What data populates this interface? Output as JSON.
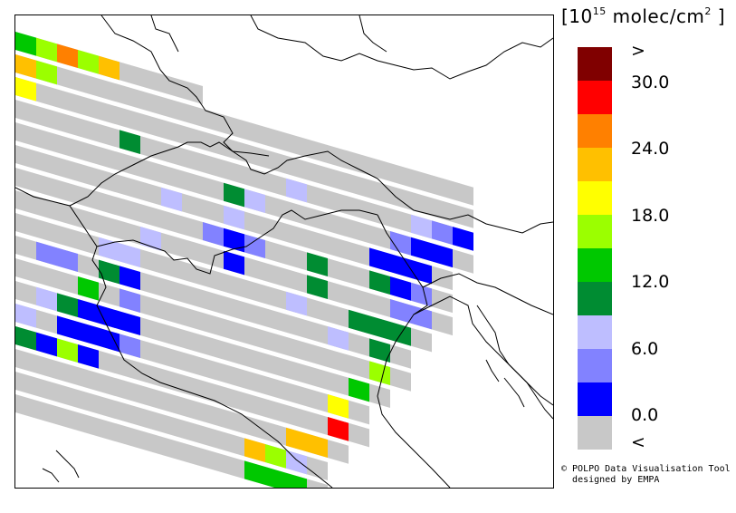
{
  "legend": {
    "title": "[10",
    "title_exp": "15",
    "title_unit": " molec/cm",
    "title_unit_exp": "2",
    "title_close": " ]",
    "swatches": [
      "#800000",
      "#ff0000",
      "#ff8000",
      "#ffc000",
      "#ffff00",
      "#9bff00",
      "#00c800",
      "#008c32",
      "#bebeff",
      "#8282ff",
      "#0000ff",
      "#c8c8c8"
    ],
    "labels": [
      ">",
      "30.0",
      "24.0",
      "18.0",
      "12.0",
      "6.0",
      "0.0",
      "<"
    ]
  },
  "credit": {
    "line1": "© POLPO Data Visualisation Tool",
    "line2": "designed by EMPA"
  },
  "map": {
    "swath_fill": "#c8c8c8",
    "pixels": [
      {
        "row": 0,
        "col": 0,
        "color": "#00c800"
      },
      {
        "row": 0,
        "col": 1,
        "color": "#9bff00"
      },
      {
        "row": 0,
        "col": 2,
        "color": "#ff8000"
      },
      {
        "row": 0,
        "col": 3,
        "color": "#9bff00"
      },
      {
        "row": 0,
        "col": 4,
        "color": "#ffc000"
      },
      {
        "row": 1,
        "col": 0,
        "color": "#ffc000"
      },
      {
        "row": 1,
        "col": 1,
        "color": "#9bff00"
      },
      {
        "row": 2,
        "col": 0,
        "color": "#ffff00"
      },
      {
        "row": 3,
        "col": 5,
        "color": "#008c32"
      },
      {
        "row": 3,
        "col": 13,
        "color": "#bebeff"
      },
      {
        "row": 4,
        "col": 10,
        "color": "#008c32"
      },
      {
        "row": 4,
        "col": 11,
        "color": "#bebeff"
      },
      {
        "row": 3,
        "col": 19,
        "color": "#bebeff"
      },
      {
        "row": 3,
        "col": 20,
        "color": "#8282ff"
      },
      {
        "row": 3,
        "col": 21,
        "color": "#0000ff"
      },
      {
        "row": 4,
        "col": 18,
        "color": "#8282ff"
      },
      {
        "row": 4,
        "col": 19,
        "color": "#0000ff"
      },
      {
        "row": 4,
        "col": 20,
        "color": "#0000ff"
      },
      {
        "row": 5,
        "col": 7,
        "color": "#bebeff"
      },
      {
        "row": 5,
        "col": 10,
        "color": "#bebeff"
      },
      {
        "row": 5,
        "col": 17,
        "color": "#0000ff"
      },
      {
        "row": 5,
        "col": 18,
        "color": "#0000ff"
      },
      {
        "row": 5,
        "col": 19,
        "color": "#0000ff"
      },
      {
        "row": 6,
        "col": 9,
        "color": "#8282ff"
      },
      {
        "row": 6,
        "col": 10,
        "color": "#0000ff"
      },
      {
        "row": 6,
        "col": 11,
        "color": "#8282ff"
      },
      {
        "row": 6,
        "col": 14,
        "color": "#008c32"
      },
      {
        "row": 6,
        "col": 17,
        "color": "#008c32"
      },
      {
        "row": 6,
        "col": 18,
        "color": "#0000ff"
      },
      {
        "row": 6,
        "col": 19,
        "color": "#8282ff"
      },
      {
        "row": 7,
        "col": 6,
        "color": "#bebeff"
      },
      {
        "row": 7,
        "col": 10,
        "color": "#0000ff"
      },
      {
        "row": 7,
        "col": 14,
        "color": "#008c32"
      },
      {
        "row": 7,
        "col": 18,
        "color": "#8282ff"
      },
      {
        "row": 7,
        "col": 19,
        "color": "#8282ff"
      },
      {
        "row": 8,
        "col": 4,
        "color": "#bebeff"
      },
      {
        "row": 8,
        "col": 5,
        "color": "#bebeff"
      },
      {
        "row": 8,
        "col": 13,
        "color": "#bebeff"
      },
      {
        "row": 8,
        "col": 16,
        "color": "#008c32"
      },
      {
        "row": 8,
        "col": 17,
        "color": "#008c32"
      },
      {
        "row": 8,
        "col": 18,
        "color": "#008c32"
      },
      {
        "row": 9,
        "col": 1,
        "color": "#8282ff"
      },
      {
        "row": 9,
        "col": 2,
        "color": "#8282ff"
      },
      {
        "row": 9,
        "col": 4,
        "color": "#008c32"
      },
      {
        "row": 9,
        "col": 5,
        "color": "#0000ff"
      },
      {
        "row": 9,
        "col": 15,
        "color": "#bebeff"
      },
      {
        "row": 9,
        "col": 17,
        "color": "#008c32"
      },
      {
        "row": 10,
        "col": 3,
        "color": "#00c800"
      },
      {
        "row": 10,
        "col": 5,
        "color": "#8282ff"
      },
      {
        "row": 10,
        "col": 17,
        "color": "#9bff00"
      },
      {
        "row": 11,
        "col": 1,
        "color": "#bebeff"
      },
      {
        "row": 11,
        "col": 2,
        "color": "#008c32"
      },
      {
        "row": 11,
        "col": 3,
        "color": "#0000ff"
      },
      {
        "row": 11,
        "col": 4,
        "color": "#0000ff"
      },
      {
        "row": 11,
        "col": 5,
        "color": "#0000ff"
      },
      {
        "row": 11,
        "col": 16,
        "color": "#00c800"
      },
      {
        "row": 12,
        "col": 0,
        "color": "#bebeff"
      },
      {
        "row": 12,
        "col": 2,
        "color": "#0000ff"
      },
      {
        "row": 12,
        "col": 3,
        "color": "#0000ff"
      },
      {
        "row": 12,
        "col": 4,
        "color": "#0000ff"
      },
      {
        "row": 12,
        "col": 5,
        "color": "#8282ff"
      },
      {
        "row": 12,
        "col": 15,
        "color": "#ffff00"
      },
      {
        "row": 13,
        "col": 0,
        "color": "#008c32"
      },
      {
        "row": 13,
        "col": 1,
        "color": "#0000ff"
      },
      {
        "row": 13,
        "col": 2,
        "color": "#9bff00"
      },
      {
        "row": 13,
        "col": 3,
        "color": "#0000ff"
      },
      {
        "row": 13,
        "col": 15,
        "color": "#ff0000"
      },
      {
        "row": 14,
        "col": 13,
        "color": "#ffc000"
      },
      {
        "row": 14,
        "col": 14,
        "color": "#ffc000"
      },
      {
        "row": 15,
        "col": 11,
        "color": "#ffc000"
      },
      {
        "row": 15,
        "col": 12,
        "color": "#9bff00"
      },
      {
        "row": 15,
        "col": 13,
        "color": "#bebeff"
      },
      {
        "row": 16,
        "col": 11,
        "color": "#00c800"
      },
      {
        "row": 16,
        "col": 12,
        "color": "#00c800"
      },
      {
        "row": 16,
        "col": 13,
        "color": "#00c800"
      }
    ]
  }
}
